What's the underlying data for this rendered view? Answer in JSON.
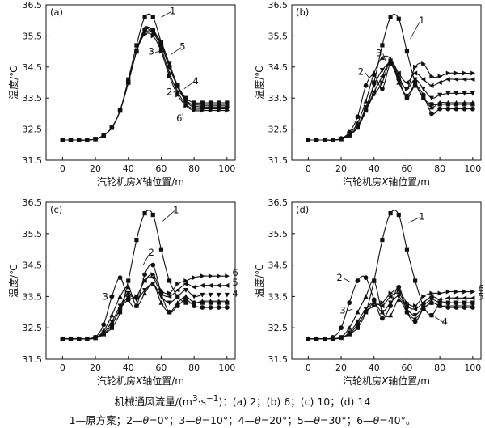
{
  "caption": {
    "line1_prefix": "机械通风流量/(m",
    "line1_sup1": "3",
    "line1_mid": "·s",
    "line1_sup2": "−1",
    "line1_suffix": ")：(a) 2；(b) 6；(c) 10；(d) 14",
    "line2_parts": [
      "1—原方案；2—",
      "θ",
      "=0°；3—",
      "θ",
      "=10°；4—",
      "θ",
      "=20°；5—",
      "θ",
      "=30°；6—",
      "θ",
      "=40°。"
    ]
  },
  "series_markers": [
    "square",
    "circle",
    "triangle-up",
    "triangle-down",
    "triangle-left",
    "triangle-right"
  ],
  "chart_data": [
    {
      "type": "line",
      "panel_label": "(a)",
      "xlabel_parts": [
        "汽轮机房",
        "X",
        "轴位置/m"
      ],
      "ylabel": "温度/℃",
      "xlim": [
        -10,
        105
      ],
      "ylim": [
        31.5,
        36.5
      ],
      "xticks": [
        0,
        20,
        40,
        60,
        80,
        100
      ],
      "yticks": [
        31.5,
        32.5,
        33.5,
        34.5,
        35.5,
        36.5
      ],
      "x": [
        0,
        5,
        10,
        15,
        20,
        25,
        30,
        35,
        40,
        45,
        50,
        55,
        60,
        65,
        70,
        75,
        80,
        85,
        90,
        95,
        100
      ],
      "series": [
        {
          "name": "1",
          "values": [
            32.15,
            32.15,
            32.15,
            32.15,
            32.18,
            32.3,
            32.55,
            33.1,
            34.1,
            35.2,
            36.1,
            36.1,
            35.3,
            34.5,
            33.9,
            33.5,
            33.35,
            33.35,
            33.35,
            33.35,
            33.35
          ]
        },
        {
          "name": "2",
          "values": [
            32.15,
            32.15,
            32.15,
            32.15,
            32.18,
            32.3,
            32.55,
            33.1,
            34.0,
            35.0,
            35.7,
            35.7,
            35.2,
            34.5,
            33.9,
            33.4,
            33.2,
            33.2,
            33.2,
            33.2,
            33.2
          ]
        },
        {
          "name": "3",
          "values": [
            32.15,
            32.15,
            32.15,
            32.15,
            32.18,
            32.3,
            32.55,
            33.1,
            34.0,
            35.0,
            35.6,
            35.6,
            35.1,
            34.3,
            33.7,
            33.3,
            33.15,
            33.15,
            33.15,
            33.15,
            33.15
          ]
        },
        {
          "name": "4",
          "values": [
            32.15,
            32.15,
            32.15,
            32.15,
            32.18,
            32.3,
            32.55,
            33.1,
            34.0,
            35.0,
            35.7,
            35.6,
            35.3,
            34.6,
            33.9,
            33.45,
            33.25,
            33.25,
            33.25,
            33.25,
            33.25
          ]
        },
        {
          "name": "5",
          "values": [
            32.15,
            32.15,
            32.15,
            32.15,
            32.18,
            32.3,
            32.55,
            33.1,
            34.0,
            35.0,
            35.75,
            35.65,
            35.2,
            34.5,
            33.85,
            33.4,
            33.3,
            33.3,
            33.3,
            33.3,
            33.3
          ]
        },
        {
          "name": "6",
          "values": [
            32.15,
            32.15,
            32.15,
            32.15,
            32.18,
            32.3,
            32.55,
            33.1,
            34.0,
            35.0,
            35.55,
            35.5,
            35.0,
            34.2,
            33.6,
            33.25,
            33.1,
            33.1,
            33.1,
            33.1,
            33.1
          ]
        }
      ],
      "labels": [
        {
          "text": "1",
          "x": 67,
          "y": 36.2,
          "lx": 60,
          "ly": 36.1
        },
        {
          "text": "5",
          "x": 73,
          "y": 35.05,
          "lx": 66,
          "ly": 34.9
        },
        {
          "text": "3",
          "x": 54,
          "y": 34.9,
          "lx": 59,
          "ly": 35.0
        },
        {
          "text": "4",
          "x": 81,
          "y": 33.95,
          "lx": 74,
          "ly": 33.8
        },
        {
          "text": "2",
          "x": 65,
          "y": 33.6,
          "lx": 70,
          "ly": 33.85
        },
        {
          "text": "6",
          "x": 71,
          "y": 32.75,
          "lx": 73,
          "ly": 33.0
        }
      ]
    },
    {
      "type": "line",
      "panel_label": "(b)",
      "xlabel_parts": [
        "汽轮机房",
        "X",
        "轴位置/m"
      ],
      "ylabel": "温度/℃",
      "xlim": [
        -10,
        105
      ],
      "ylim": [
        31.5,
        36.5
      ],
      "xticks": [
        0,
        20,
        40,
        60,
        80,
        100
      ],
      "yticks": [
        31.5,
        32.5,
        33.5,
        34.5,
        35.5,
        36.5
      ],
      "x": [
        0,
        5,
        10,
        15,
        20,
        25,
        30,
        35,
        40,
        45,
        50,
        55,
        60,
        65,
        70,
        75,
        80,
        85,
        90,
        95,
        100
      ],
      "series": [
        {
          "name": "1",
          "values": [
            32.15,
            32.15,
            32.15,
            32.15,
            32.18,
            32.3,
            32.55,
            33.1,
            34.0,
            35.2,
            36.1,
            36.05,
            35.0,
            34.0,
            33.5,
            33.3,
            33.3,
            33.3,
            33.3,
            33.3,
            33.3
          ]
        },
        {
          "name": "2",
          "values": [
            32.15,
            32.15,
            32.15,
            32.15,
            32.2,
            32.4,
            32.9,
            33.9,
            34.25,
            33.8,
            34.6,
            34.1,
            33.5,
            33.9,
            33.6,
            33.0,
            33.15,
            33.15,
            33.15,
            33.15,
            33.15
          ]
        },
        {
          "name": "3",
          "values": [
            32.15,
            32.15,
            32.15,
            32.15,
            32.18,
            32.35,
            32.7,
            33.4,
            34.3,
            34.8,
            34.75,
            34.0,
            33.6,
            33.9,
            33.5,
            33.2,
            33.35,
            33.35,
            33.35,
            33.35,
            33.35
          ]
        },
        {
          "name": "4",
          "values": [
            32.15,
            32.15,
            32.15,
            32.15,
            32.18,
            32.3,
            32.6,
            33.2,
            33.9,
            34.4,
            34.6,
            34.1,
            33.8,
            34.1,
            33.8,
            33.5,
            33.6,
            33.65,
            33.65,
            33.65,
            33.65
          ]
        },
        {
          "name": "5",
          "values": [
            32.15,
            32.15,
            32.15,
            32.15,
            32.18,
            32.3,
            32.6,
            33.1,
            33.7,
            34.2,
            34.7,
            34.3,
            34.0,
            34.3,
            34.1,
            33.9,
            34.0,
            34.1,
            34.1,
            34.1,
            34.1
          ]
        },
        {
          "name": "6",
          "values": [
            32.15,
            32.15,
            32.15,
            32.15,
            32.18,
            32.3,
            32.6,
            33.1,
            33.6,
            34.0,
            34.7,
            34.2,
            33.8,
            34.5,
            34.6,
            34.2,
            34.2,
            34.3,
            34.3,
            34.3,
            34.3
          ]
        }
      ],
      "labels": [
        {
          "text": "1",
          "x": 69,
          "y": 35.9,
          "lx": 62,
          "ly": 35.4
        },
        {
          "text": "3",
          "x": 43,
          "y": 34.85,
          "lx": 47,
          "ly": 34.7
        },
        {
          "text": "2",
          "x": 32,
          "y": 34.25,
          "lx": 37,
          "ly": 34.15
        }
      ]
    },
    {
      "type": "line",
      "panel_label": "(c)",
      "xlabel_parts": [
        "汽轮机房",
        "X",
        "轴位置/m"
      ],
      "ylabel": "温度/℃",
      "xlim": [
        -10,
        105
      ],
      "ylim": [
        31.5,
        36.5
      ],
      "xticks": [
        0,
        20,
        40,
        60,
        80,
        100
      ],
      "yticks": [
        31.5,
        32.5,
        33.5,
        34.5,
        35.5,
        36.5
      ],
      "x": [
        0,
        5,
        10,
        15,
        20,
        25,
        30,
        35,
        40,
        45,
        50,
        55,
        60,
        65,
        70,
        75,
        80,
        85,
        90,
        95,
        100
      ],
      "series": [
        {
          "name": "1",
          "values": [
            32.15,
            32.15,
            32.15,
            32.15,
            32.2,
            32.3,
            32.5,
            33.0,
            34.0,
            35.3,
            36.15,
            36.1,
            35.0,
            34.0,
            33.5,
            33.3,
            33.3,
            33.3,
            33.3,
            33.3,
            33.3
          ]
        },
        {
          "name": "2",
          "values": [
            32.15,
            32.15,
            32.15,
            32.15,
            32.2,
            32.6,
            33.5,
            34.1,
            33.4,
            33.2,
            34.2,
            34.5,
            33.6,
            33.0,
            33.2,
            33.4,
            33.2,
            33.15,
            33.15,
            33.15,
            33.15
          ]
        },
        {
          "name": "3",
          "values": [
            32.15,
            32.15,
            32.15,
            32.15,
            32.18,
            32.4,
            32.9,
            33.5,
            33.8,
            33.2,
            33.6,
            33.9,
            33.3,
            33.0,
            33.3,
            33.5,
            33.3,
            33.35,
            33.35,
            33.35,
            33.35
          ]
        },
        {
          "name": "4",
          "values": [
            32.15,
            32.15,
            32.15,
            32.15,
            32.18,
            32.35,
            32.7,
            33.2,
            33.6,
            33.4,
            33.7,
            33.9,
            33.5,
            33.3,
            33.5,
            33.7,
            33.5,
            33.55,
            33.55,
            33.55,
            33.55
          ]
        },
        {
          "name": "5",
          "values": [
            32.15,
            32.15,
            32.15,
            32.15,
            32.18,
            32.3,
            32.6,
            33.1,
            33.5,
            33.5,
            34.0,
            34.1,
            33.6,
            33.5,
            33.7,
            33.9,
            33.8,
            33.85,
            33.85,
            33.85,
            33.85
          ]
        },
        {
          "name": "6",
          "values": [
            32.15,
            32.15,
            32.15,
            32.15,
            32.18,
            32.3,
            32.6,
            33.1,
            33.4,
            33.5,
            34.0,
            34.2,
            33.7,
            33.6,
            33.9,
            34.0,
            34.1,
            34.15,
            34.15,
            34.15,
            34.15
          ]
        }
      ],
      "labels": [
        {
          "text": "1",
          "x": 69,
          "y": 36.15,
          "lx": 61,
          "ly": 35.9
        },
        {
          "text": "2",
          "x": 54,
          "y": 34.8,
          "lx": 49,
          "ly": 34.5
        },
        {
          "text": "3",
          "x": 26,
          "y": 33.4,
          "lx": 32,
          "ly": 33.55
        },
        {
          "text": "6",
          "x": 105,
          "y": 34.15
        },
        {
          "text": "5",
          "x": 105,
          "y": 33.85
        },
        {
          "text": "4",
          "x": 105,
          "y": 33.5
        }
      ]
    },
    {
      "type": "line",
      "panel_label": "(d)",
      "xlabel_parts": [
        "汽轮机房",
        "X",
        "轴位置/m"
      ],
      "ylabel": "温度/℃",
      "xlim": [
        -10,
        105
      ],
      "ylim": [
        31.5,
        36.5
      ],
      "xticks": [
        0,
        20,
        40,
        60,
        80,
        100
      ],
      "yticks": [
        31.5,
        32.5,
        33.5,
        34.5,
        35.5,
        36.5
      ],
      "x": [
        0,
        5,
        10,
        15,
        20,
        25,
        30,
        35,
        40,
        45,
        50,
        55,
        60,
        65,
        70,
        75,
        80,
        85,
        90,
        95,
        100
      ],
      "series": [
        {
          "name": "1",
          "values": [
            32.15,
            32.15,
            32.15,
            32.15,
            32.2,
            32.3,
            32.5,
            33.0,
            34.0,
            35.3,
            36.15,
            36.1,
            35.0,
            34.0,
            33.2,
            32.9,
            33.3,
            33.3,
            33.3,
            33.3,
            33.3
          ]
        },
        {
          "name": "2",
          "values": [
            32.15,
            32.15,
            32.15,
            32.2,
            32.5,
            33.3,
            34.0,
            34.1,
            33.4,
            32.8,
            33.2,
            33.8,
            33.0,
            32.7,
            33.1,
            33.3,
            33.2,
            33.15,
            33.15,
            33.15,
            33.15
          ]
        },
        {
          "name": "3",
          "values": [
            32.15,
            32.15,
            32.15,
            32.15,
            32.2,
            32.5,
            33.0,
            33.5,
            34.0,
            33.0,
            32.9,
            33.4,
            33.0,
            32.8,
            33.1,
            33.3,
            33.2,
            33.2,
            33.2,
            33.2,
            33.2
          ]
        },
        {
          "name": "4",
          "values": [
            32.15,
            32.15,
            32.15,
            32.15,
            32.18,
            32.35,
            32.7,
            33.1,
            33.3,
            33.0,
            33.3,
            33.5,
            33.1,
            32.9,
            33.2,
            33.4,
            33.3,
            33.3,
            33.3,
            33.3,
            33.3
          ]
        },
        {
          "name": "5",
          "values": [
            32.15,
            32.15,
            32.15,
            32.15,
            32.18,
            32.3,
            32.6,
            33.0,
            33.3,
            33.2,
            33.5,
            33.6,
            33.2,
            33.1,
            33.3,
            33.5,
            33.4,
            33.45,
            33.45,
            33.45,
            33.45
          ]
        },
        {
          "name": "6",
          "values": [
            32.15,
            32.15,
            32.15,
            32.15,
            32.18,
            32.3,
            32.6,
            33.0,
            33.2,
            33.3,
            33.6,
            33.7,
            33.3,
            33.2,
            33.5,
            33.6,
            33.6,
            33.65,
            33.65,
            33.65,
            33.65
          ]
        }
      ],
      "labels": [
        {
          "text": "1",
          "x": 69,
          "y": 35.95,
          "lx": 61,
          "ly": 35.85
        },
        {
          "text": "2",
          "x": 19,
          "y": 34.0,
          "lx": 26,
          "ly": 33.95
        },
        {
          "text": "3",
          "x": 21,
          "y": 32.95,
          "lx": 27,
          "ly": 33.1
        },
        {
          "text": "4",
          "x": 83,
          "y": 32.6,
          "lx": 77,
          "ly": 32.85
        },
        {
          "text": "6",
          "x": 105,
          "y": 33.65
        },
        {
          "text": "5",
          "x": 105,
          "y": 33.4
        }
      ]
    }
  ]
}
